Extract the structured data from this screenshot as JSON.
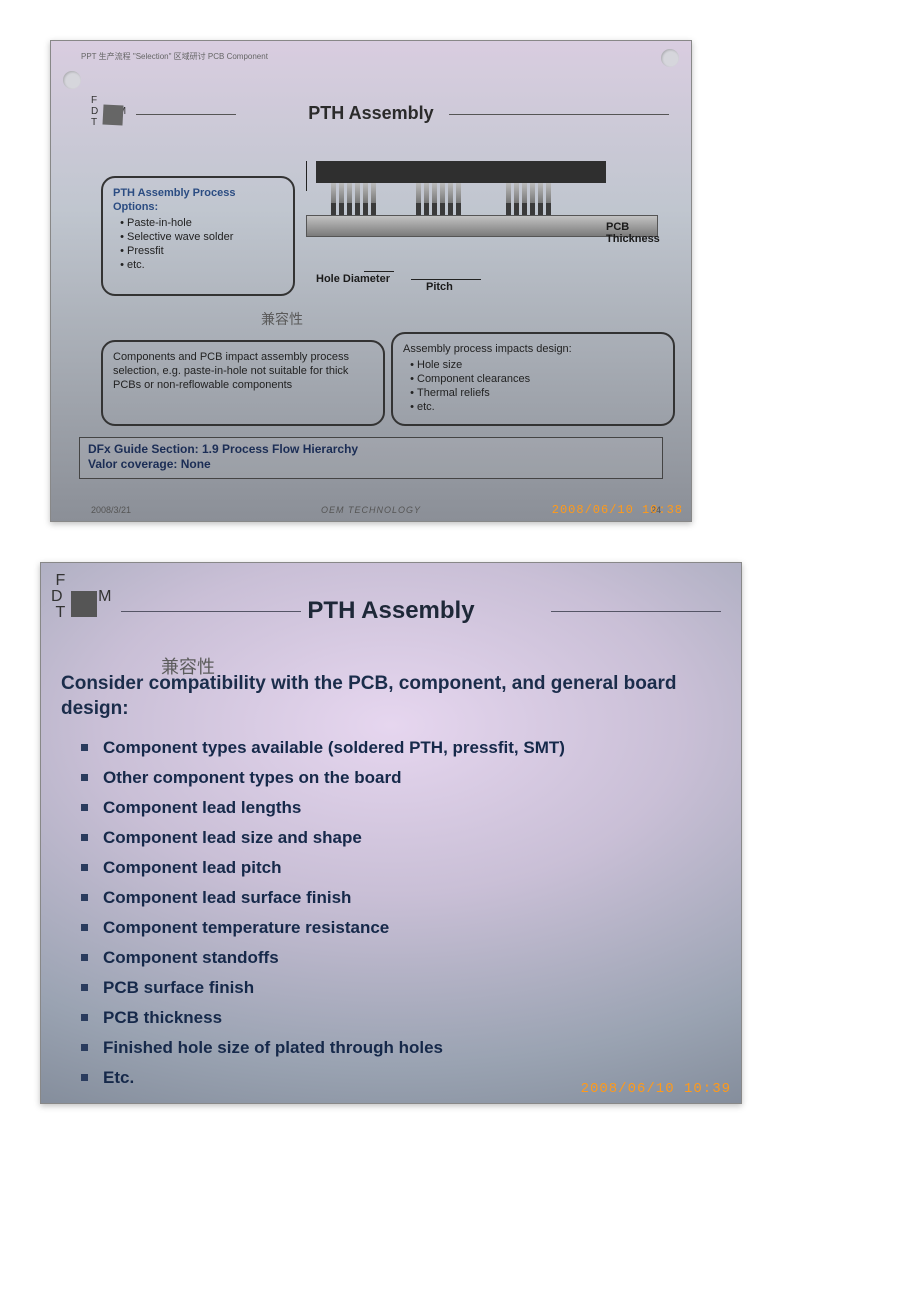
{
  "slide1": {
    "topbar": "PPT 生产流程 \"Selection\" 区域研讨 PCB Component",
    "title": "PTH Assembly",
    "options": {
      "head": "PTH Assembly Process Options:",
      "items": [
        "Paste-in-hole",
        "Selective wave solder",
        "Pressfit",
        "etc."
      ]
    },
    "annotation": "兼容性",
    "components_box": "Components and PCB impact assembly process selection, e.g. paste-in-hole not suitable for thick PCBs or non-reflowable components",
    "components_underline": "impact",
    "impacts": {
      "head": "Assembly process impacts design:",
      "items": [
        "Hole size",
        "Component clearances",
        "Thermal reliefs",
        "etc."
      ]
    },
    "diagram": {
      "hole_label": "Hole Diameter",
      "pitch_label": "Pitch",
      "pcb_label": "PCB Thickness"
    },
    "guide_line1": "DFx Guide Section: 1.9 Process Flow Hierarchy",
    "guide_line2": "Valor coverage: None",
    "footer_date": "2008/3/21",
    "footer_org": "OEM TECHNOLOGY",
    "footer_page": "24",
    "timestamp": "2008/06/10 10:38"
  },
  "slide2": {
    "title": "PTH Assembly",
    "annotation": "兼容性",
    "lead": "Consider compatibility with the PCB, component, and general board design:",
    "bullets": [
      "Component types available (soldered PTH, pressfit, SMT)",
      "Other component types on the board",
      "Component lead lengths",
      "Component lead size and shape",
      "Component lead pitch",
      "Component lead surface finish",
      "Component temperature resistance",
      "Component standoffs",
      "PCB surface finish",
      "PCB thickness",
      "Finished hole size of plated through holes",
      "Etc."
    ],
    "timestamp": "2008/06/10 10:39"
  },
  "dfm_letters": {
    "F": "F",
    "D": "D",
    "M": "M",
    "T": "T"
  }
}
